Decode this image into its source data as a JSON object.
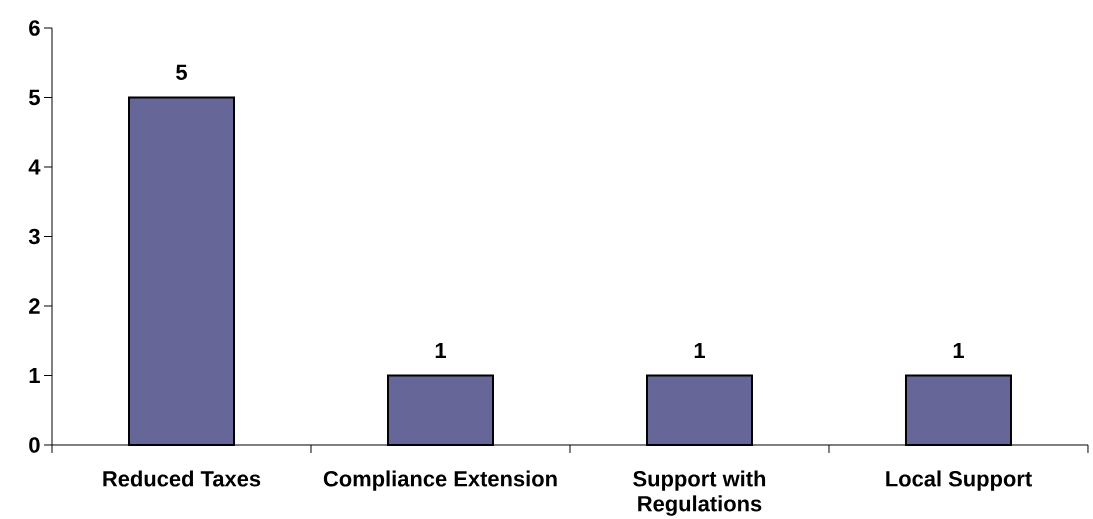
{
  "chart_data": {
    "type": "bar",
    "categories": [
      "Reduced Taxes",
      "Compliance Extension",
      "Support with Regulations",
      "Local Support"
    ],
    "values": [
      5,
      1,
      1,
      1
    ],
    "color": "#666699",
    "value_labels": [
      "5",
      "1",
      "1",
      "1"
    ],
    "ylim": [
      0,
      6
    ],
    "yticks": [
      0,
      1,
      2,
      3,
      4,
      5,
      6
    ]
  }
}
